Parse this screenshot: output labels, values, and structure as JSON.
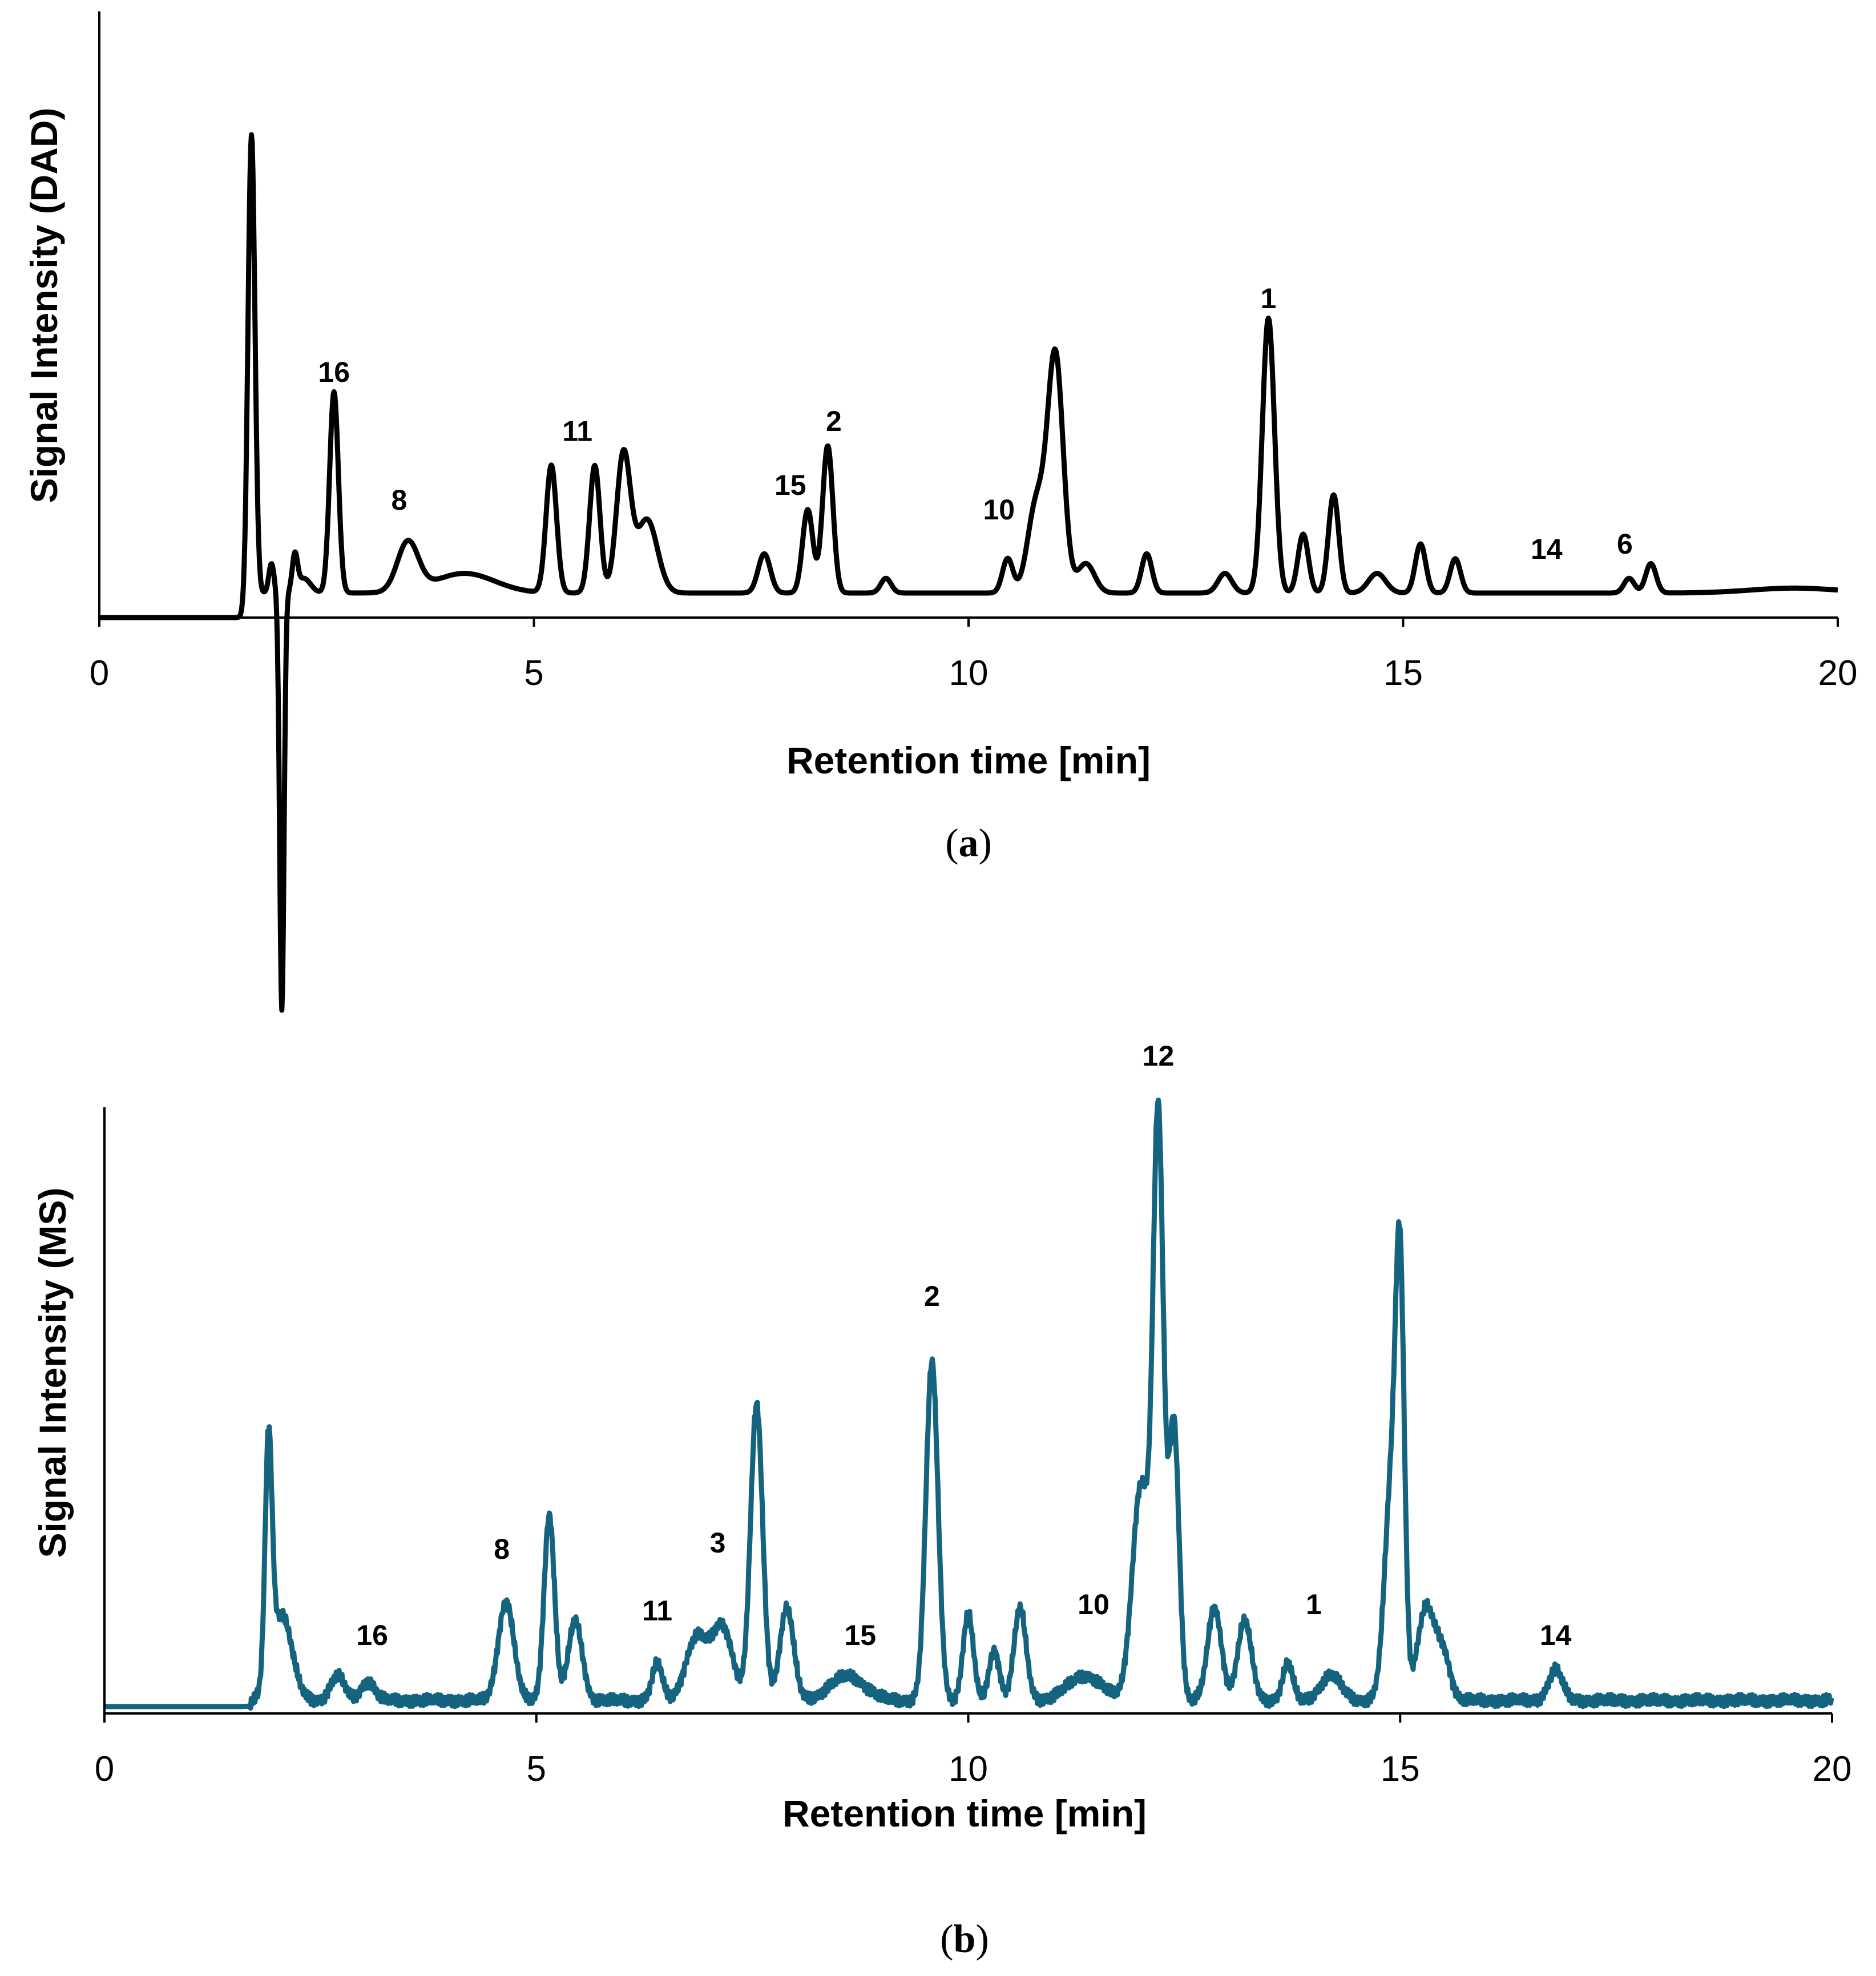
{
  "chart_data": [
    {
      "type": "line",
      "panel_caption": [
        "(",
        "a",
        ")"
      ],
      "xlabel": "Retention time [min]",
      "ylabel": "Signal Intensity (DAD)",
      "xlim": [
        0,
        20
      ],
      "ylim": [
        -0.8,
        1.0
      ],
      "x_ticks": [
        0,
        5,
        10,
        15,
        20
      ],
      "color": "#000000",
      "baseline": 0.05,
      "peaks": [
        {
          "x": 1.75,
          "h": 0.94,
          "w": 0.04
        },
        {
          "x": 2.1,
          "h": -0.85,
          "w": 0.025
        },
        {
          "x": 1.98,
          "h": 0.06,
          "w": 0.03
        },
        {
          "x": 2.25,
          "h": 0.07,
          "w": 0.03
        },
        {
          "x": 2.35,
          "h": 0.03,
          "w": 0.08
        },
        {
          "x": 2.7,
          "h": 0.41,
          "w": 0.05
        },
        {
          "x": 3.55,
          "h": 0.1,
          "w": 0.12
        },
        {
          "x": 4.2,
          "h": 0.04,
          "w": 0.35
        },
        {
          "x": 5.2,
          "h": 0.26,
          "w": 0.06
        },
        {
          "x": 5.7,
          "h": 0.26,
          "w": 0.06
        },
        {
          "x": 6.03,
          "h": 0.28,
          "w": 0.08
        },
        {
          "x": 6.3,
          "h": 0.15,
          "w": 0.12
        },
        {
          "x": 7.65,
          "h": 0.08,
          "w": 0.07
        },
        {
          "x": 8.15,
          "h": 0.17,
          "w": 0.06
        },
        {
          "x": 8.38,
          "h": 0.3,
          "w": 0.06
        },
        {
          "x": 9.05,
          "h": 0.03,
          "w": 0.06
        },
        {
          "x": 10.45,
          "h": 0.07,
          "w": 0.06
        },
        {
          "x": 10.78,
          "h": 0.18,
          "w": 0.1
        },
        {
          "x": 11.0,
          "h": 0.48,
          "w": 0.09
        },
        {
          "x": 11.35,
          "h": 0.06,
          "w": 0.1
        },
        {
          "x": 12.05,
          "h": 0.08,
          "w": 0.06
        },
        {
          "x": 12.95,
          "h": 0.04,
          "w": 0.08
        },
        {
          "x": 13.45,
          "h": 0.56,
          "w": 0.07
        },
        {
          "x": 13.85,
          "h": 0.12,
          "w": 0.06
        },
        {
          "x": 14.2,
          "h": 0.2,
          "w": 0.06
        },
        {
          "x": 14.7,
          "h": 0.04,
          "w": 0.1
        },
        {
          "x": 15.2,
          "h": 0.1,
          "w": 0.06
        },
        {
          "x": 15.6,
          "h": 0.07,
          "w": 0.06
        },
        {
          "x": 17.6,
          "h": 0.03,
          "w": 0.06
        },
        {
          "x": 17.85,
          "h": 0.06,
          "w": 0.06
        },
        {
          "x": 19.5,
          "h": 0.01,
          "w": 0.5
        }
      ],
      "peak_labels": [
        {
          "text": "16",
          "x": 2.7,
          "y": 0.48
        },
        {
          "text": "8",
          "x": 3.45,
          "y": 0.22
        },
        {
          "text": "11",
          "x": 5.5,
          "y": 0.36
        },
        {
          "text": "15",
          "x": 7.95,
          "y": 0.25
        },
        {
          "text": "2",
          "x": 8.45,
          "y": 0.38
        },
        {
          "text": "10",
          "x": 10.35,
          "y": 0.2
        },
        {
          "text": "1",
          "x": 13.45,
          "y": 0.63
        },
        {
          "text": "14",
          "x": 16.65,
          "y": 0.12
        },
        {
          "text": "6",
          "x": 17.55,
          "y": 0.13
        }
      ]
    },
    {
      "type": "line",
      "panel_caption": [
        "(",
        "b",
        ")"
      ],
      "xlabel": "Retention time [min]",
      "ylabel": "Signal Intensity (MS)",
      "xlim": [
        0,
        20
      ],
      "ylim": [
        0,
        1.0
      ],
      "x_ticks": [
        0,
        5,
        10,
        15,
        20
      ],
      "color": "#14637f",
      "baseline": 0.01,
      "peaks": [
        {
          "x": 1.9,
          "h": 0.38,
          "w": 0.04
        },
        {
          "x": 2.05,
          "h": 0.14,
          "w": 0.12
        },
        {
          "x": 2.7,
          "h": 0.04,
          "w": 0.08
        },
        {
          "x": 3.05,
          "h": 0.03,
          "w": 0.08
        },
        {
          "x": 4.65,
          "h": 0.16,
          "w": 0.09
        },
        {
          "x": 5.15,
          "h": 0.3,
          "w": 0.06
        },
        {
          "x": 5.45,
          "h": 0.13,
          "w": 0.08
        },
        {
          "x": 6.4,
          "h": 0.06,
          "w": 0.06
        },
        {
          "x": 6.85,
          "h": 0.1,
          "w": 0.12
        },
        {
          "x": 7.15,
          "h": 0.12,
          "w": 0.12
        },
        {
          "x": 7.55,
          "h": 0.48,
          "w": 0.07
        },
        {
          "x": 7.9,
          "h": 0.15,
          "w": 0.08
        },
        {
          "x": 8.6,
          "h": 0.04,
          "w": 0.2
        },
        {
          "x": 9.58,
          "h": 0.55,
          "w": 0.07
        },
        {
          "x": 10.0,
          "h": 0.14,
          "w": 0.06
        },
        {
          "x": 10.3,
          "h": 0.08,
          "w": 0.06
        },
        {
          "x": 10.6,
          "h": 0.15,
          "w": 0.07
        },
        {
          "x": 11.35,
          "h": 0.04,
          "w": 0.2
        },
        {
          "x": 12.0,
          "h": 0.35,
          "w": 0.1
        },
        {
          "x": 12.2,
          "h": 0.92,
          "w": 0.06
        },
        {
          "x": 12.38,
          "h": 0.45,
          "w": 0.06
        },
        {
          "x": 12.85,
          "h": 0.15,
          "w": 0.08
        },
        {
          "x": 13.2,
          "h": 0.13,
          "w": 0.08
        },
        {
          "x": 13.7,
          "h": 0.06,
          "w": 0.06
        },
        {
          "x": 14.2,
          "h": 0.04,
          "w": 0.12
        },
        {
          "x": 14.9,
          "h": 0.35,
          "w": 0.08
        },
        {
          "x": 15.0,
          "h": 0.6,
          "w": 0.05
        },
        {
          "x": 15.3,
          "h": 0.15,
          "w": 0.1
        },
        {
          "x": 15.5,
          "h": 0.07,
          "w": 0.08
        },
        {
          "x": 16.8,
          "h": 0.05,
          "w": 0.08
        }
      ],
      "peak_labels": [
        {
          "text": "16",
          "x": 3.1,
          "y": 0.1
        },
        {
          "text": "8",
          "x": 4.6,
          "y": 0.24
        },
        {
          "text": "11",
          "x": 6.4,
          "y": 0.14
        },
        {
          "text": "3",
          "x": 7.1,
          "y": 0.25
        },
        {
          "text": "15",
          "x": 8.75,
          "y": 0.1
        },
        {
          "text": "2",
          "x": 9.58,
          "y": 0.65
        },
        {
          "text": "10",
          "x": 11.45,
          "y": 0.15
        },
        {
          "text": "1",
          "x": 14.0,
          "y": 0.15
        },
        {
          "text": "12",
          "x": 12.2,
          "y": 1.04
        },
        {
          "text": "14",
          "x": 16.8,
          "y": 0.1
        }
      ]
    }
  ]
}
